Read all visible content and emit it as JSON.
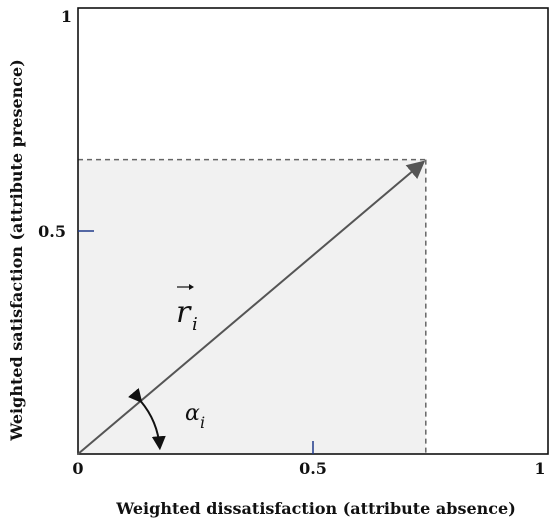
{
  "diagram": {
    "x_axis_title": "Weighted dissatisfaction (attribute absence)",
    "y_axis_title": "Weighted satisfaction (attribute presence)",
    "x_ticks": [
      {
        "value": 0,
        "label": "0"
      },
      {
        "value": 0.5,
        "label": "0.5"
      },
      {
        "value": 1,
        "label": "1"
      }
    ],
    "y_ticks": [
      {
        "value": 0.5,
        "label": "0.5"
      },
      {
        "value": 1,
        "label": "1"
      }
    ],
    "axis_range": [
      0,
      1
    ],
    "vector": {
      "tip": {
        "x": 0.74,
        "y": 0.66
      },
      "label_base": "r",
      "label_sub": "i"
    },
    "angle": {
      "label_base": "α",
      "label_sub": "i"
    },
    "colors": {
      "frame": "#111111",
      "shade": "#f1f1f1",
      "vector": "#555555",
      "dashes": "#666666",
      "tick_mark": "#1f3a8a"
    }
  }
}
